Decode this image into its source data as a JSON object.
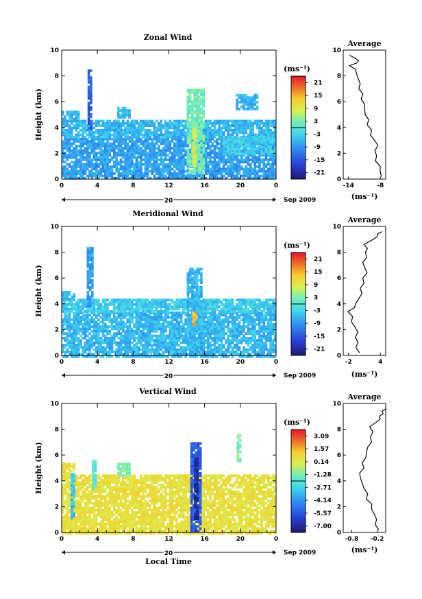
{
  "chart_data": [
    {
      "type": "heatmap",
      "title": "Zonal Wind",
      "ylabel": "Height (km)",
      "xlabel": "",
      "xlim": [
        0,
        24
      ],
      "ylim": [
        0,
        10
      ],
      "x_ticks": [
        "0",
        "4",
        "8",
        "12",
        "16",
        "20",
        "0"
      ],
      "y_ticks": [
        "0",
        "2",
        "4",
        "6",
        "8",
        "10"
      ],
      "date_day": "20",
      "date_month": "Sep 2009",
      "colorbar": {
        "unit": "(ms⁻¹)",
        "ticks": [
          "21",
          "15",
          "9",
          "3",
          "-3",
          "-9",
          "-15",
          "-21"
        ],
        "range": [
          -24,
          24
        ]
      },
      "echoes": [
        {
          "x": [
            0.0,
            24.0
          ],
          "y": [
            0.0,
            3.2
          ],
          "v": -8
        },
        {
          "x": [
            0.0,
            24.0
          ],
          "y": [
            3.2,
            4.6
          ],
          "v": -6
        },
        {
          "x": [
            0.0,
            2.0
          ],
          "y": [
            4.5,
            5.3
          ],
          "v": -6
        },
        {
          "x": [
            2.9,
            3.3
          ],
          "y": [
            4.0,
            8.5
          ],
          "v": -14
        },
        {
          "x": [
            6.2,
            7.6
          ],
          "y": [
            4.8,
            5.6
          ],
          "v": -6
        },
        {
          "x": [
            14.0,
            16.0
          ],
          "y": [
            0.5,
            7.0
          ],
          "v": 2
        },
        {
          "x": [
            14.6,
            15.1
          ],
          "y": [
            1.0,
            4.0
          ],
          "v": 8
        },
        {
          "x": [
            18.0,
            24.0
          ],
          "y": [
            2.0,
            3.3
          ],
          "v": -4
        },
        {
          "x": [
            19.5,
            22.0
          ],
          "y": [
            5.5,
            6.6
          ],
          "v": -6
        }
      ],
      "profile": {
        "title": "Average",
        "xlabel": "(ms⁻¹)",
        "x_ticks": [
          "-14",
          "-8"
        ],
        "xlim": [
          -15,
          -7
        ],
        "heights": [
          0.2,
          1.0,
          1.8,
          2.6,
          3.4,
          4.2,
          5.0,
          5.8,
          6.6,
          7.4,
          8.2,
          8.8,
          9.2,
          9.6
        ],
        "values": [
          -7.8,
          -8.3,
          -9.0,
          -8.5,
          -9.6,
          -10.2,
          -10.8,
          -11.2,
          -11.6,
          -11.9,
          -12.3,
          -13.5,
          -12.0,
          -14.0
        ]
      }
    },
    {
      "type": "heatmap",
      "title": "Meridional Wind",
      "ylabel": "Height (km)",
      "xlabel": "",
      "xlim": [
        0,
        24
      ],
      "ylim": [
        0,
        10
      ],
      "x_ticks": [
        "0",
        "4",
        "8",
        "12",
        "16",
        "20",
        "0"
      ],
      "y_ticks": [
        "0",
        "2",
        "4",
        "6",
        "8",
        "10"
      ],
      "date_day": "20",
      "date_month": "Sep 2009",
      "colorbar": {
        "unit": "(ms⁻¹)",
        "ticks": [
          "21",
          "15",
          "9",
          "3",
          "-3",
          "-9",
          "-15",
          "-21"
        ],
        "range": [
          -24,
          24
        ]
      },
      "echoes": [
        {
          "x": [
            0.0,
            24.0
          ],
          "y": [
            0.0,
            3.4
          ],
          "v": -6
        },
        {
          "x": [
            0.0,
            24.0
          ],
          "y": [
            3.4,
            4.4
          ],
          "v": -4
        },
        {
          "x": [
            0.0,
            1.5
          ],
          "y": [
            4.4,
            5.0
          ],
          "v": -6
        },
        {
          "x": [
            2.8,
            3.4
          ],
          "y": [
            3.8,
            8.4
          ],
          "v": -8
        },
        {
          "x": [
            14.0,
            15.6
          ],
          "y": [
            0.5,
            6.8
          ],
          "v": -6
        },
        {
          "x": [
            14.6,
            14.9
          ],
          "y": [
            2.4,
            3.4
          ],
          "v": 14
        }
      ],
      "profile": {
        "title": "Average",
        "xlabel": "(ms⁻¹)",
        "x_ticks": [
          "-2",
          "4"
        ],
        "xlim": [
          -3,
          5
        ],
        "heights": [
          0.2,
          1.0,
          1.8,
          2.6,
          3.4,
          4.0,
          4.8,
          5.6,
          6.4,
          7.2,
          8.0,
          8.6,
          9.2,
          9.6
        ],
        "values": [
          -0.2,
          -0.5,
          -0.3,
          -1.2,
          -1.8,
          -0.6,
          0.3,
          0.6,
          1.4,
          0.9,
          1.5,
          1.0,
          3.2,
          4.0
        ]
      }
    },
    {
      "type": "heatmap",
      "title": "Vertical Wind",
      "ylabel": "Height (km)",
      "xlabel": "Local Time",
      "xlim": [
        0,
        24
      ],
      "ylim": [
        0,
        10
      ],
      "x_ticks": [
        "0",
        "4",
        "8",
        "12",
        "16",
        "20",
        "0"
      ],
      "y_ticks": [
        "0",
        "2",
        "4",
        "6",
        "8",
        "10"
      ],
      "date_day": "20",
      "date_month": "Sep 2009",
      "colorbar": {
        "unit": "(ms⁻¹)",
        "ticks": [
          "3.09",
          "1.57",
          "0.14",
          "-1.28",
          "-2.71",
          "-4.14",
          "-5.57",
          "-7.00"
        ],
        "range": [
          -8.0,
          4.0
        ]
      },
      "echoes": [
        {
          "x": [
            0.0,
            24.0
          ],
          "y": [
            0.0,
            4.5
          ],
          "v": 0.6
        },
        {
          "x": [
            0.0,
            1.5
          ],
          "y": [
            4.5,
            5.4
          ],
          "v": 0.6
        },
        {
          "x": [
            1.0,
            1.4
          ],
          "y": [
            1.2,
            4.6
          ],
          "v": -3.2
        },
        {
          "x": [
            3.4,
            3.7
          ],
          "y": [
            3.4,
            5.6
          ],
          "v": -2.0
        },
        {
          "x": [
            6.2,
            7.6
          ],
          "y": [
            4.4,
            5.4
          ],
          "v": -1.2
        },
        {
          "x": [
            14.4,
            15.6
          ],
          "y": [
            0.2,
            7.0
          ],
          "v": -5.6
        },
        {
          "x": [
            14.8,
            15.2
          ],
          "y": [
            1.0,
            5.8
          ],
          "v": -7.2
        },
        {
          "x": [
            19.6,
            20.0
          ],
          "y": [
            5.6,
            7.6
          ],
          "v": -1.4
        }
      ],
      "profile": {
        "title": "Average",
        "xlabel": "(ms⁻¹)",
        "x_ticks": [
          "-0.8",
          "-0.2"
        ],
        "xlim": [
          -1.0,
          0.0
        ],
        "heights": [
          0.2,
          1.0,
          1.8,
          2.6,
          3.4,
          4.2,
          5.0,
          5.8,
          6.6,
          7.4,
          8.2,
          8.8,
          9.2,
          9.6
        ],
        "values": [
          -0.2,
          -0.22,
          -0.3,
          -0.42,
          -0.5,
          -0.62,
          -0.55,
          -0.48,
          -0.4,
          -0.32,
          -0.36,
          -0.15,
          -0.1,
          0.0
        ]
      }
    }
  ]
}
